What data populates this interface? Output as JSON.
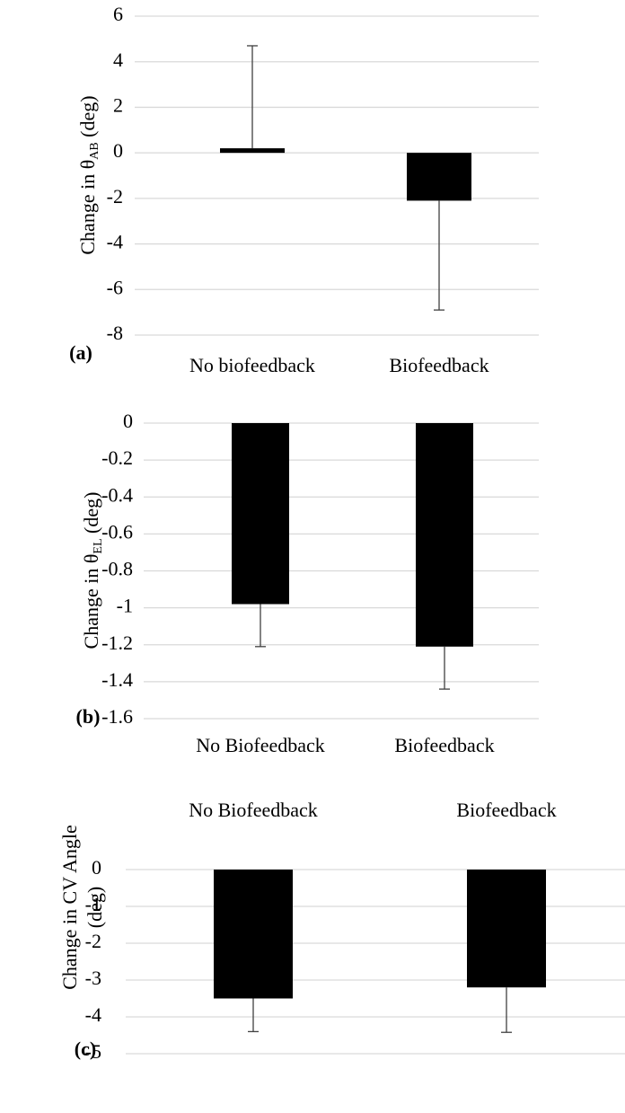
{
  "chart_data": [
    {
      "type": "bar",
      "panel_label": "(a)",
      "y_label": [
        "Change in θ",
        "AB",
        " (deg)"
      ],
      "categories": [
        "No biofeedback",
        "Biofeedback"
      ],
      "values": [
        0.2,
        -2.1
      ],
      "errors": [
        4.5,
        4.8
      ],
      "color": "#000000",
      "ylim": [
        -8,
        6
      ],
      "yticks": [
        -8,
        -6,
        -4,
        -2,
        0,
        2,
        4,
        6
      ],
      "grid": true,
      "category_position": "bottom"
    },
    {
      "type": "bar",
      "panel_label": "(b)",
      "y_label": [
        "Change in θ",
        "EL",
        " (deg)"
      ],
      "categories": [
        "No Biofeedback",
        "Biofeedback"
      ],
      "values": [
        -0.98,
        -1.21
      ],
      "errors": [
        0.23,
        0.23
      ],
      "color": "#000000",
      "ylim": [
        -1.6,
        0
      ],
      "yticks": [
        -1.6,
        -1.4,
        -1.2,
        -1,
        -0.8,
        -0.6,
        -0.4,
        -0.2,
        0
      ],
      "grid": true,
      "category_position": "bottom"
    },
    {
      "type": "bar",
      "panel_label": "(c)",
      "y_label": [
        "Change in CV Angle",
        "(deg)"
      ],
      "categories": [
        "No Biofeedback",
        "Biofeedback"
      ],
      "values": [
        -3.5,
        -3.2
      ],
      "errors": [
        0.9,
        1.22
      ],
      "color": "#000000",
      "ylim": [
        -5,
        0
      ],
      "yticks": [
        -5,
        -4,
        -3,
        -2,
        -1,
        0
      ],
      "grid": true,
      "category_position": "top"
    }
  ]
}
